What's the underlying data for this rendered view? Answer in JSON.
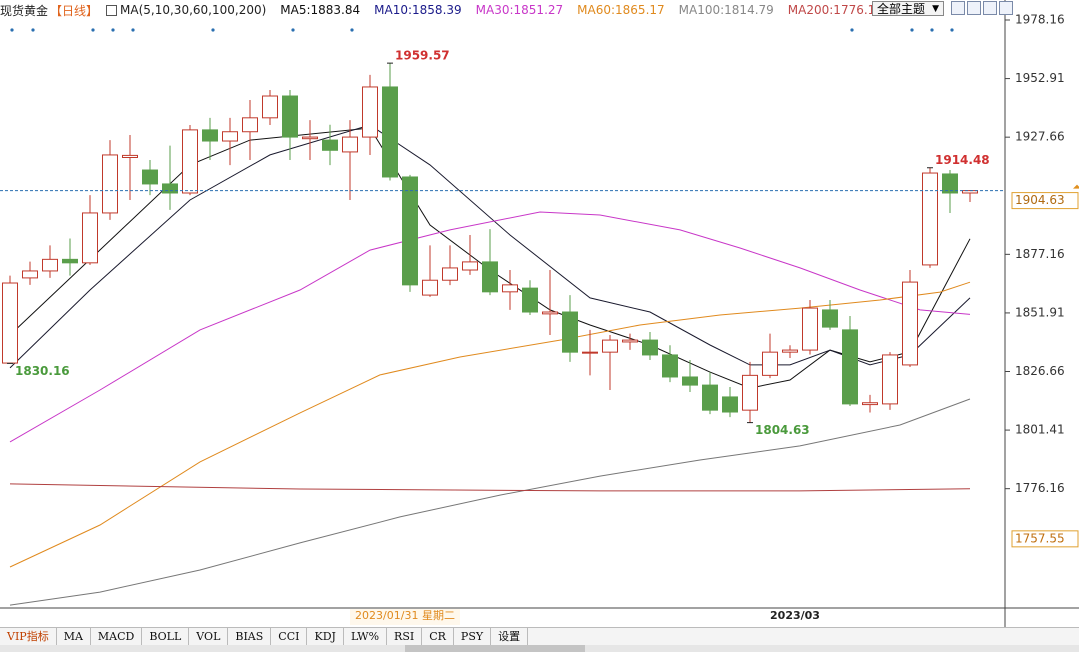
{
  "chart_data": {
    "type": "candlestick",
    "title": "现货黄金",
    "period": "【日线】",
    "indicator": "MA(5,10,30,60,100,200)",
    "theme_button": "全部主题",
    "categories": [
      null,
      null,
      null,
      null,
      null,
      null,
      null,
      null,
      null,
      null,
      null,
      null,
      null,
      null,
      null,
      null,
      null,
      null,
      null,
      null,
      null,
      null,
      null,
      null,
      null,
      null,
      null,
      null,
      null,
      null,
      null,
      null,
      null,
      null,
      null,
      null,
      null,
      null,
      null,
      "2023/03",
      null,
      null,
      null,
      null,
      null,
      null,
      null,
      null,
      null
    ],
    "open": [
      1830.3,
      1867,
      1870,
      1875,
      1873.5,
      1895,
      1918.9,
      1913.5,
      1907.5,
      1903.6,
      1930.8,
      1926,
      1930,
      1936,
      1945.4,
      1927,
      1926.4,
      1921.3,
      1927.7,
      1949.3,
      1910.5,
      1859.6,
      1866,
      1870.4,
      1873.9,
      1861,
      1862.6,
      1851.5,
      1852.3,
      1834.6,
      1835,
      1839.4,
      1840.2,
      1833.8,
      1824.3,
      1820.8,
      1815.7,
      1810,
      1825,
      1835,
      1835.9,
      1853.2,
      1844.6,
      1812.4,
      1812.7,
      1829.5,
      1872.6,
      1911.8,
      1903.6
    ],
    "high": [
      1868,
      1874,
      1881,
      1884,
      1902.7,
      1926.4,
      1928.6,
      1917.8,
      1924,
      1932.9,
      1936,
      1936,
      1943.7,
      1948,
      1948,
      1935,
      1933,
      1935,
      1954.5,
      1959.57,
      1911.4,
      1881,
      1881,
      1885.5,
      1888,
      1870.4,
      1866,
      1870.4,
      1859.6,
      1844.6,
      1842.4,
      1843,
      1843.7,
      1838,
      1831.6,
      1826.4,
      1820,
      1830.8,
      1843,
      1838,
      1857.5,
      1857.5,
      1850.6,
      1816.6,
      1835,
      1870.4,
      1914.48,
      1913.5,
      1904.9
    ],
    "low": [
      1830.16,
      1864,
      1867,
      1868,
      1872.6,
      1892,
      1900.6,
      1902.7,
      1896.3,
      1902.7,
      1917.8,
      1915.6,
      1917.8,
      1932.9,
      1917.8,
      1917.8,
      1915.6,
      1900.6,
      1920,
      1909,
      1861,
      1858.8,
      1863.9,
      1868.3,
      1859.6,
      1853.2,
      1851,
      1842.4,
      1830.8,
      1825,
      1818.7,
      1836,
      1831.6,
      1822.1,
      1817.8,
      1808.3,
      1807,
      1804.63,
      1823.8,
      1832.5,
      1834,
      1844.6,
      1811.8,
      1809,
      1810.1,
      1828.6,
      1871.3,
      1895,
      1899.7
    ],
    "close": [
      1864.8,
      1870,
      1875,
      1873.5,
      1895,
      1920,
      1919.8,
      1907.5,
      1903.6,
      1930.8,
      1926,
      1930,
      1936,
      1945.4,
      1927.7,
      1927.7,
      1922,
      1927.7,
      1949.3,
      1910.5,
      1864,
      1866,
      1871.3,
      1873.9,
      1861,
      1864,
      1852.3,
      1852.3,
      1835,
      1835,
      1840.2,
      1840.2,
      1833.8,
      1824.3,
      1820.8,
      1810,
      1809.2,
      1825,
      1835,
      1835.9,
      1854,
      1845.8,
      1812.7,
      1813.2,
      1833.8,
      1865.2,
      1912.2,
      1903.6,
      1904.63
    ],
    "up_color": "#c0392b",
    "down_color": "#5a9e4b",
    "marked_highs": [
      19,
      46
    ],
    "marked_lows": [
      0,
      37
    ],
    "series": [
      {
        "name": "MA5:1883.84",
        "color": "#111111",
        "label_color": "#111111",
        "x": [
          0,
          9,
          12,
          18,
          21,
          24,
          27,
          29,
          32,
          35,
          37,
          39,
          41,
          43,
          45,
          48
        ],
        "values": [
          1842.4,
          1915.7,
          1926.4,
          1931.6,
          1889.8,
          1870.4,
          1853.2,
          1846.7,
          1838.1,
          1826.4,
          1819.5,
          1823.0,
          1835.9,
          1830.8,
          1835.1,
          1883.84
        ]
      },
      {
        "name": "MA10:1858.39",
        "color": "#1a1a2e",
        "label_color": "#1b1b8a",
        "x": [
          0,
          4,
          9,
          13,
          18,
          21,
          25,
          29,
          32,
          35,
          37,
          39,
          41,
          43,
          45,
          48
        ],
        "values": [
          1828.2,
          1861.8,
          1900.6,
          1920.0,
          1932.9,
          1915.7,
          1885.5,
          1858.4,
          1852.3,
          1838.1,
          1829.5,
          1829.5,
          1835.9,
          1829.5,
          1833.8,
          1858.39
        ]
      },
      {
        "name": "MA30:1851.27",
        "color": "#c837c8",
        "label_color": "#c837c8",
        "x": [
          0,
          4.5,
          9.5,
          14.5,
          18,
          22,
          26.5,
          29.5,
          33.5,
          36.5,
          39.5,
          42.5,
          45.5,
          48
        ],
        "values": [
          1796.3,
          1818.7,
          1844.6,
          1861.8,
          1879.0,
          1887.7,
          1895.4,
          1894.1,
          1887.7,
          1879.9,
          1871.3,
          1861.8,
          1853.2,
          1851.27
        ]
      },
      {
        "name": "MA60:1865.17",
        "color": "#e08a1e",
        "label_color": "#e08a1e",
        "x": [
          0,
          4.5,
          9.5,
          14.5,
          18.5,
          22.5,
          27.5,
          31.5,
          35.5,
          39.5,
          43.5,
          46.5,
          48
        ],
        "values": [
          1742.4,
          1760.5,
          1787.7,
          1808.8,
          1825.2,
          1832.9,
          1840.2,
          1846.7,
          1851.0,
          1854.0,
          1857.5,
          1860.9,
          1865.17
        ]
      },
      {
        "name": "MA100:1814.79",
        "color": "#777777",
        "label_color": "#888888",
        "x": [
          0,
          4.5,
          9.5,
          14.5,
          19.5,
          24.5,
          29.5,
          34.5,
          39.5,
          44.5,
          48
        ],
        "values": [
          1726.0,
          1731.6,
          1741.1,
          1752.8,
          1764.0,
          1773.4,
          1781.6,
          1788.5,
          1794.6,
          1803.6,
          1814.79
        ]
      },
      {
        "name": "MA200:1776.13",
        "color": "#b04040",
        "label_color": "#c04848",
        "x": [
          0,
          14.5,
          29.5,
          39.5,
          48
        ],
        "values": [
          1778.2,
          1776.0,
          1775.2,
          1775.2,
          1776.13
        ]
      }
    ],
    "ylim": [
      1724.73,
      1986.78
    ],
    "yticks": [
      1978.16,
      1952.91,
      1927.66,
      1877.16,
      1851.91,
      1826.66,
      1801.41,
      1776.16
    ],
    "crosshair": {
      "price": 1757.55,
      "date": "2023/01/31 星期二"
    },
    "tabs": [
      "VIP指标",
      "MA",
      "MACD",
      "BOLL",
      "VOL",
      "BIAS",
      "CCI",
      "KDJ",
      "LW%",
      "RSI",
      "CR",
      "PSY",
      "设置"
    ]
  }
}
